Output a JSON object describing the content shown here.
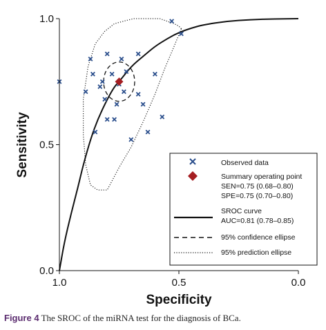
{
  "chart_data": {
    "type": "scatter",
    "xlabel": "Specificity",
    "ylabel": "Sensitivity",
    "xlim": [
      1.0,
      0.0
    ],
    "ylim": [
      0.0,
      1.0
    ],
    "x_ticks": [
      "1.0",
      "0.5",
      "0.0"
    ],
    "y_ticks": [
      "0.0",
      "0.5",
      "1.0"
    ],
    "grid": false,
    "legend_position": "lower-right",
    "series": [
      {
        "name": "Observed data",
        "marker": "x",
        "color": "#2a4e8c",
        "points": [
          {
            "x": 1.0,
            "y": 0.75
          },
          {
            "x": 0.89,
            "y": 0.71
          },
          {
            "x": 0.87,
            "y": 0.84
          },
          {
            "x": 0.86,
            "y": 0.78
          },
          {
            "x": 0.85,
            "y": 0.55
          },
          {
            "x": 0.83,
            "y": 0.73
          },
          {
            "x": 0.82,
            "y": 0.75
          },
          {
            "x": 0.81,
            "y": 0.68
          },
          {
            "x": 0.8,
            "y": 0.86
          },
          {
            "x": 0.8,
            "y": 0.6
          },
          {
            "x": 0.78,
            "y": 0.78
          },
          {
            "x": 0.77,
            "y": 0.6
          },
          {
            "x": 0.76,
            "y": 0.66
          },
          {
            "x": 0.75,
            "y": 0.74
          },
          {
            "x": 0.74,
            "y": 0.84
          },
          {
            "x": 0.73,
            "y": 0.71
          },
          {
            "x": 0.72,
            "y": 0.79
          },
          {
            "x": 0.7,
            "y": 0.52
          },
          {
            "x": 0.67,
            "y": 0.86
          },
          {
            "x": 0.67,
            "y": 0.7
          },
          {
            "x": 0.65,
            "y": 0.66
          },
          {
            "x": 0.63,
            "y": 0.55
          },
          {
            "x": 0.6,
            "y": 0.78
          },
          {
            "x": 0.57,
            "y": 0.61
          },
          {
            "x": 0.53,
            "y": 0.99
          },
          {
            "x": 0.49,
            "y": 0.94
          }
        ]
      },
      {
        "name": "Summary operating point",
        "marker": "diamond",
        "color": "#a51e22",
        "points": [
          {
            "x": 0.75,
            "y": 0.75
          }
        ]
      },
      {
        "name": "SROC curve",
        "style": "solid",
        "color": "#111111"
      },
      {
        "name": "95% confidence ellipse",
        "style": "dashed",
        "color": "#111111"
      },
      {
        "name": "95% prediction ellipse",
        "style": "dotted",
        "color": "#111111"
      }
    ],
    "summary": {
      "x": 0.75,
      "y": 0.75,
      "sen_text": "SEN=0.75 (0.68–0.80)",
      "spe_text": "SPE=0.75 (0.70–0.80)",
      "auc_text": "AUC=0.81 (0.78–0.85)"
    },
    "sroc_curve": {
      "x": [
        1.0,
        0.98,
        0.95,
        0.92,
        0.9,
        0.87,
        0.84,
        0.8,
        0.77,
        0.75,
        0.7,
        0.65,
        0.6,
        0.55,
        0.5,
        0.45,
        0.4,
        0.3,
        0.2,
        0.1,
        0.0
      ],
      "y": [
        0.0,
        0.11,
        0.23,
        0.34,
        0.42,
        0.52,
        0.6,
        0.68,
        0.73,
        0.75,
        0.81,
        0.85,
        0.89,
        0.92,
        0.945,
        0.962,
        0.975,
        0.99,
        0.996,
        0.999,
        1.0
      ]
    },
    "confidence_ellipse": {
      "center": [
        0.75,
        0.75
      ],
      "radius_x": 0.065,
      "radius_y": 0.078
    },
    "prediction_ellipse": {
      "x": [
        0.49,
        0.52,
        0.56,
        0.6,
        0.65,
        0.7,
        0.75,
        0.8,
        0.84,
        0.87,
        0.89,
        0.9,
        0.9,
        0.88,
        0.85,
        0.81,
        0.77,
        0.73,
        0.69,
        0.65,
        0.61,
        0.58,
        0.55,
        0.52,
        0.5,
        0.49,
        0.49
      ],
      "y": [
        0.96,
        0.89,
        0.8,
        0.7,
        0.59,
        0.49,
        0.41,
        0.32,
        0.32,
        0.34,
        0.42,
        0.54,
        0.68,
        0.81,
        0.9,
        0.95,
        0.98,
        0.99,
        1.0,
        1.0,
        1.0,
        1.0,
        0.99,
        0.98,
        0.97,
        0.96,
        0.96
      ]
    }
  },
  "caption": {
    "label": "Figure 4",
    "text": " The SROC of the miRNA test for the diagnosis of BCa."
  }
}
